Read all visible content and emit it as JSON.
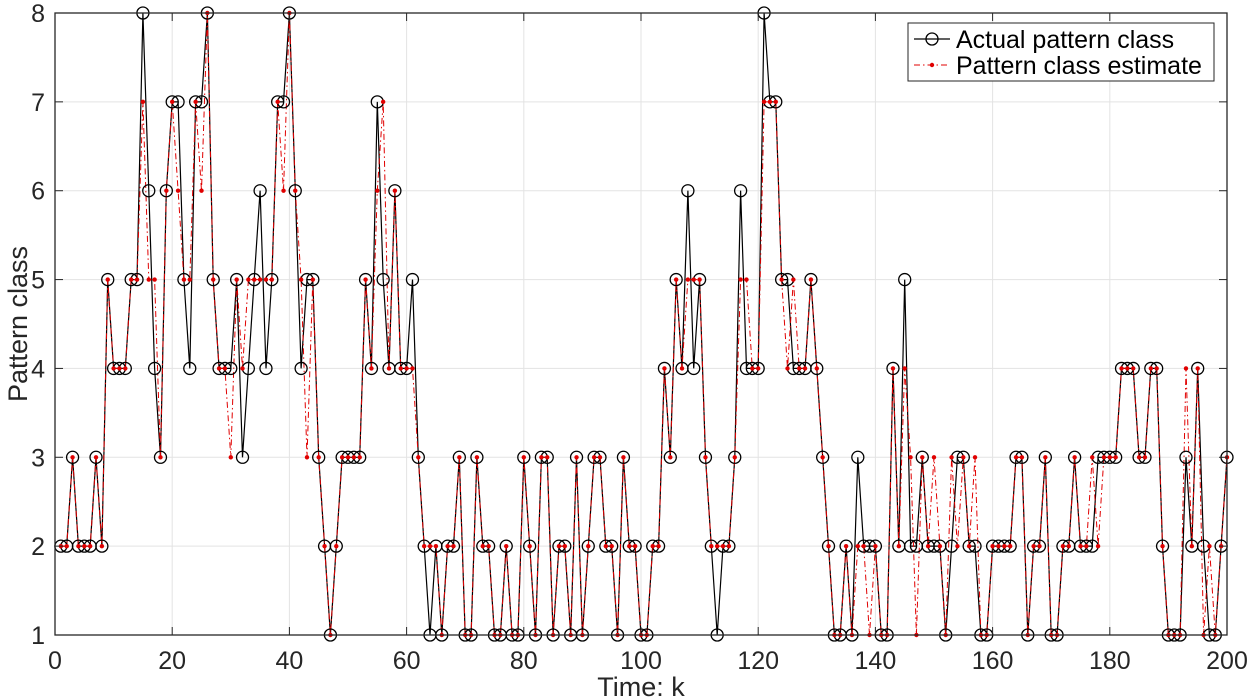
{
  "chart_data": {
    "type": "line",
    "title": "",
    "xlabel": "Time: k",
    "ylabel": "Pattern class",
    "xlim": [
      0,
      200
    ],
    "ylim": [
      1,
      8
    ],
    "grid": true,
    "legend_position": "top-right",
    "x_ticks": [
      "0",
      "20",
      "40",
      "60",
      "80",
      "100",
      "120",
      "140",
      "160",
      "180",
      "200"
    ],
    "y_ticks": [
      "1",
      "2",
      "3",
      "4",
      "5",
      "6",
      "7",
      "8"
    ],
    "x": [
      1,
      2,
      3,
      4,
      5,
      6,
      7,
      8,
      9,
      10,
      11,
      12,
      13,
      14,
      15,
      16,
      17,
      18,
      19,
      20,
      21,
      22,
      23,
      24,
      25,
      26,
      27,
      28,
      29,
      30,
      31,
      32,
      33,
      34,
      35,
      36,
      37,
      38,
      39,
      40,
      41,
      42,
      43,
      44,
      45,
      46,
      47,
      48,
      49,
      50,
      51,
      52,
      53,
      54,
      55,
      56,
      57,
      58,
      59,
      60,
      61,
      62,
      63,
      64,
      65,
      66,
      67,
      68,
      69,
      70,
      71,
      72,
      73,
      74,
      75,
      76,
      77,
      78,
      79,
      80,
      81,
      82,
      83,
      84,
      85,
      86,
      87,
      88,
      89,
      90,
      91,
      92,
      93,
      94,
      95,
      96,
      97,
      98,
      99,
      100,
      101,
      102,
      103,
      104,
      105,
      106,
      107,
      108,
      109,
      110,
      111,
      112,
      113,
      114,
      115,
      116,
      117,
      118,
      119,
      120,
      121,
      122,
      123,
      124,
      125,
      126,
      127,
      128,
      129,
      130,
      131,
      132,
      133,
      134,
      135,
      136,
      137,
      138,
      139,
      140,
      141,
      142,
      143,
      144,
      145,
      146,
      147,
      148,
      149,
      150,
      151,
      152,
      153,
      154,
      155,
      156,
      157,
      158,
      159,
      160,
      161,
      162,
      163,
      164,
      165,
      166,
      167,
      168,
      169,
      170,
      171,
      172,
      173,
      174,
      175,
      176,
      177,
      178,
      179,
      180,
      181,
      182,
      183,
      184,
      185,
      186,
      187,
      188,
      189,
      190,
      191,
      192,
      193,
      194,
      195,
      196,
      197,
      198,
      199,
      200
    ],
    "series": [
      {
        "name": "Actual pattern class",
        "color": "#000000",
        "marker": "circle",
        "values": [
          2,
          2,
          3,
          2,
          2,
          2,
          3,
          2,
          5,
          4,
          4,
          4,
          5,
          5,
          8,
          6,
          4,
          3,
          6,
          7,
          7,
          5,
          4,
          7,
          7,
          8,
          5,
          4,
          4,
          4,
          5,
          3,
          4,
          5,
          6,
          4,
          5,
          7,
          7,
          8,
          6,
          4,
          5,
          5,
          3,
          2,
          1,
          2,
          3,
          3,
          3,
          3,
          5,
          4,
          7,
          5,
          4,
          6,
          4,
          4,
          5,
          3,
          2,
          1,
          2,
          1,
          2,
          2,
          3,
          1,
          1,
          3,
          2,
          2,
          1,
          1,
          2,
          1,
          1,
          3,
          2,
          1,
          3,
          3,
          1,
          2,
          2,
          1,
          3,
          1,
          2,
          3,
          3,
          2,
          2,
          1,
          3,
          2,
          2,
          1,
          1,
          2,
          2,
          4,
          3,
          5,
          4,
          6,
          4,
          5,
          3,
          2,
          1,
          2,
          2,
          3,
          6,
          4,
          4,
          4,
          8,
          7,
          7,
          5,
          5,
          4,
          4,
          4,
          5,
          4,
          3,
          2,
          1,
          1,
          2,
          1,
          3,
          2,
          2,
          2,
          1,
          1,
          4,
          2,
          5,
          2,
          2,
          3,
          2,
          2,
          2,
          1,
          2,
          3,
          3,
          2,
          2,
          1,
          1,
          2,
          2,
          2,
          2,
          3,
          3,
          1,
          2,
          2,
          3,
          1,
          1,
          2,
          2,
          3,
          2,
          2,
          2,
          3,
          3,
          3,
          3,
          4,
          4,
          4,
          3,
          3,
          4,
          4,
          2,
          1,
          1,
          1,
          3,
          2,
          4,
          2,
          1,
          1,
          2,
          3
        ]
      },
      {
        "name": "Pattern class estimate",
        "color": "#e00000",
        "marker": "dot",
        "values": [
          2,
          2,
          3,
          2,
          2,
          2,
          3,
          2,
          5,
          4,
          4,
          4,
          5,
          5,
          7,
          5,
          5,
          3,
          6,
          7,
          6,
          5,
          5,
          7,
          6,
          8,
          5,
          4,
          4,
          3,
          5,
          4,
          5,
          5,
          5,
          5,
          5,
          7,
          6,
          8,
          6,
          5,
          3,
          5,
          3,
          2,
          1,
          2,
          3,
          3,
          3,
          3,
          5,
          4,
          6,
          7,
          4,
          6,
          4,
          4,
          4,
          3,
          2,
          2,
          2,
          1,
          2,
          2,
          3,
          1,
          1,
          3,
          2,
          2,
          1,
          1,
          2,
          1,
          1,
          3,
          2,
          1,
          3,
          3,
          1,
          2,
          2,
          1,
          3,
          1,
          2,
          3,
          3,
          2,
          2,
          1,
          3,
          2,
          2,
          1,
          1,
          2,
          2,
          4,
          3,
          5,
          4,
          5,
          5,
          5,
          3,
          2,
          2,
          2,
          2,
          3,
          5,
          5,
          4,
          4,
          7,
          7,
          7,
          5,
          4,
          5,
          4,
          4,
          5,
          4,
          3,
          2,
          1,
          1,
          2,
          1,
          2,
          2,
          1,
          2,
          1,
          1,
          4,
          2,
          4,
          3,
          1,
          3,
          2,
          3,
          2,
          1,
          3,
          2,
          3,
          2,
          3,
          1,
          1,
          2,
          2,
          2,
          2,
          3,
          3,
          1,
          2,
          2,
          3,
          1,
          1,
          2,
          2,
          3,
          2,
          2,
          3,
          2,
          3,
          3,
          3,
          4,
          4,
          4,
          3,
          3,
          4,
          4,
          2,
          1,
          1,
          1,
          4,
          2,
          4,
          1,
          2,
          1,
          2,
          3
        ]
      }
    ]
  }
}
